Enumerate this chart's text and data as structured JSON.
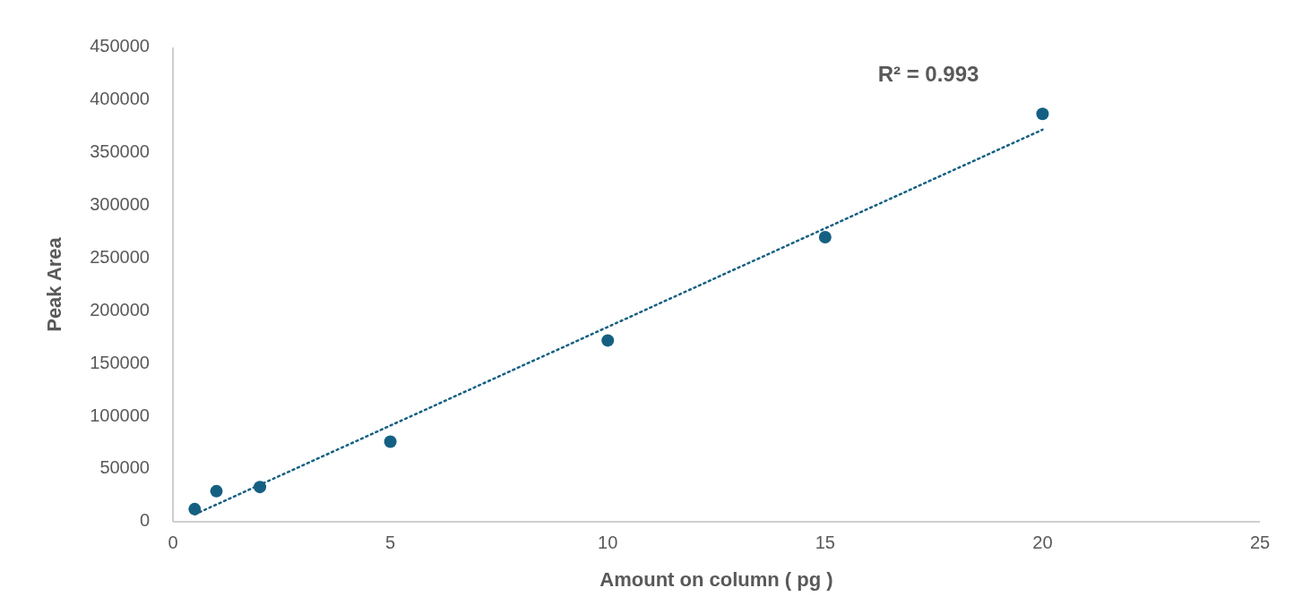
{
  "chart_data": {
    "type": "scatter",
    "xlabel": "Amount on column ( pg )",
    "ylabel": "Peak Area",
    "x": [
      0.5,
      1,
      2,
      5,
      10,
      15,
      20
    ],
    "series": [
      {
        "color": "#156082",
        "values": [
          12000,
          29000,
          33000,
          76000,
          172000,
          270000,
          387000
        ],
        "marker": "circle"
      },
      {
        "type": "line",
        "color": "#156082",
        "x": [
          0.5,
          20
        ],
        "values": [
          7000,
          372000
        ],
        "line_style": "dotted",
        "marker": "none"
      }
    ],
    "xlim": [
      0,
      25
    ],
    "xticks": [
      0,
      5,
      10,
      15,
      20,
      25
    ],
    "ylim": [
      0,
      450000
    ],
    "yticks": [
      0,
      50000,
      100000,
      150000,
      200000,
      250000,
      300000,
      350000,
      400000,
      450000
    ],
    "grid": false,
    "annotations": [
      "R² = 0.993"
    ]
  }
}
